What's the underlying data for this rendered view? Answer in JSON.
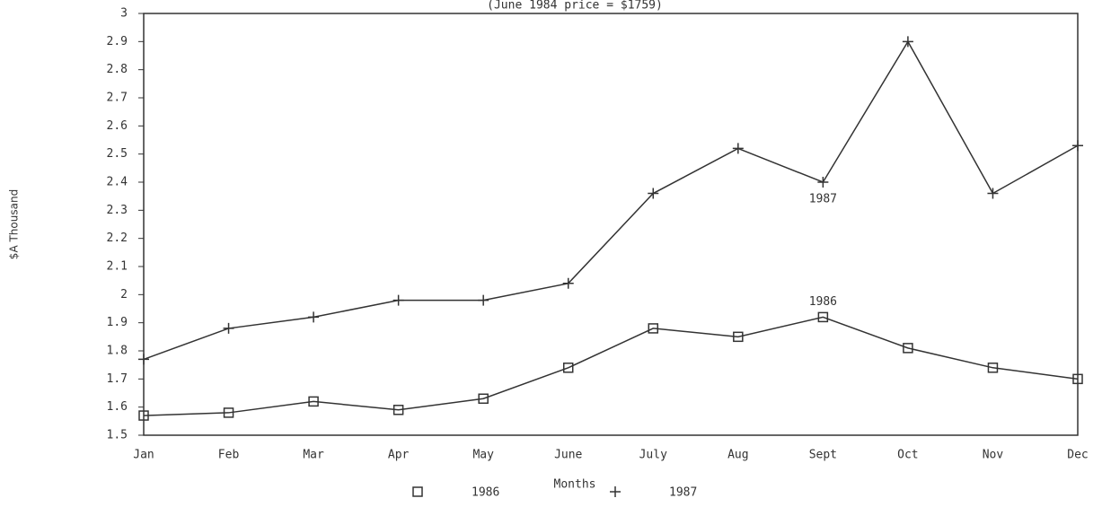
{
  "chart_data": {
    "type": "line",
    "subtitle": "(June 1984 price = $1759)",
    "y_label": "$A Thousand",
    "x_label": "Months",
    "categories": [
      "Jan",
      "Feb",
      "Mar",
      "Apr",
      "May",
      "June",
      "July",
      "Aug",
      "Sept",
      "Oct",
      "Nov",
      "Dec"
    ],
    "series": [
      {
        "name": "1986",
        "color": "#333333",
        "marker": "square",
        "values": [
          1.57,
          1.58,
          1.62,
          1.59,
          1.63,
          1.74,
          1.88,
          1.85,
          1.92,
          1.81,
          1.74,
          1.7
        ]
      },
      {
        "name": "1987",
        "color": "#333333",
        "marker": "plus",
        "values": [
          1.77,
          1.88,
          1.92,
          1.98,
          1.98,
          2.04,
          2.36,
          2.52,
          2.4,
          2.9,
          2.36,
          2.53
        ]
      }
    ],
    "annotations": [
      "1987",
      "1986"
    ],
    "ylim": [
      1.5,
      3
    ],
    "yticks": [
      1.5,
      1.6,
      1.7,
      1.8,
      1.9,
      2,
      2.1,
      2.2,
      2.3,
      2.4,
      2.5,
      2.6,
      2.7,
      2.8,
      2.9,
      3
    ],
    "legend": "bottom"
  }
}
